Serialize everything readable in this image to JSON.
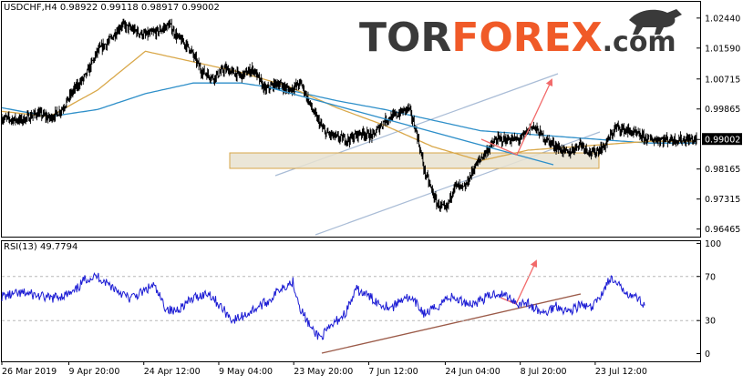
{
  "chart_data": [
    {
      "type": "line",
      "title": "USDCHF,H4  0.98922 0.99118 0.98917 0.99002",
      "symbol": "USDCHF",
      "timeframe": "H4",
      "ohlc": {
        "open": 0.98922,
        "high": 0.99118,
        "low": 0.98917,
        "close": 0.99002
      },
      "watermark": "TORFOREX.com",
      "ylim": [
        0.9625,
        1.029
      ],
      "y_ticks": [
        "1.02440",
        "1.01590",
        "1.00715",
        "0.99865",
        "0.99002",
        "0.98165",
        "0.97315",
        "0.96465"
      ],
      "current_price_label": "0.99002",
      "x_tick_labels": [
        "26 Mar 2019",
        "9 Apr 20:00",
        "24 Apr 12:00",
        "9 May 04:00",
        "23 May 20:00",
        "7 Jun 12:00",
        "24 Jun 04:00",
        "8 Jul 20:00",
        "23 Jul 12:00"
      ],
      "x_tick_index": [
        0,
        84,
        178,
        272,
        366,
        460,
        556,
        650,
        744
      ],
      "n_bars": 872,
      "grid": false,
      "colors": {
        "price": "#000000",
        "ma_fast": "#d9a84a",
        "ma_slow": "#2e8fc9",
        "channel": "#a9bcd6",
        "zone_fill": "#e8e2d0",
        "zone_border": "#d7a64a",
        "arrow": "#f26a6a"
      },
      "series": [
        {
          "anchors": [
            [
              0,
              0.996
            ],
            [
              25,
              0.9955
            ],
            [
              45,
              0.9975
            ],
            [
              60,
              0.996
            ],
            [
              75,
              0.9985
            ],
            [
              90,
              1.004
            ],
            [
              105,
              1.008
            ],
            [
              120,
              1.015
            ],
            [
              135,
              1.018
            ],
            [
              150,
              1.0225
            ],
            [
              165,
              1.021
            ],
            [
              180,
              1.0195
            ],
            [
              195,
              1.0205
            ],
            [
              210,
              1.0225
            ],
            [
              220,
              1.019
            ],
            [
              235,
              1.016
            ],
            [
              250,
              1.0095
            ],
            [
              265,
              1.0075
            ],
            [
              280,
              1.01
            ],
            [
              300,
              1.008
            ],
            [
              315,
              1.01
            ],
            [
              330,
              1.004
            ],
            [
              345,
              1.006
            ],
            [
              360,
              1.004
            ],
            [
              375,
              1.006
            ],
            [
              390,
              0.998
            ],
            [
              405,
              0.992
            ],
            [
              420,
              0.9905
            ],
            [
              435,
              0.99
            ],
            [
              450,
              0.992
            ],
            [
              465,
              0.991
            ],
            [
              480,
              0.9955
            ],
            [
              495,
              0.997
            ],
            [
              510,
              0.999
            ],
            [
              520,
              0.992
            ],
            [
              530,
              0.981
            ],
            [
              545,
              0.972
            ],
            [
              557,
              0.97
            ],
            [
              567,
              0.977
            ],
            [
              580,
              0.976
            ],
            [
              592,
              0.982
            ],
            [
              605,
              0.986
            ],
            [
              620,
              0.99
            ],
            [
              635,
              0.99
            ],
            [
              650,
              0.99
            ],
            [
              665,
              0.994
            ],
            [
              680,
              0.9905
            ],
            [
              695,
              0.988
            ],
            [
              710,
              0.986
            ],
            [
              725,
              0.989
            ],
            [
              740,
              0.986
            ],
            [
              755,
              0.988
            ],
            [
              770,
              0.9935
            ],
            [
              785,
              0.9925
            ],
            [
              800,
              0.991
            ],
            [
              813,
              0.99
            ]
          ],
          "ma_fast": [
            [
              0,
              0.998
            ],
            [
              60,
              0.9965
            ],
            [
              120,
              1.004
            ],
            [
              180,
              1.015
            ],
            [
              240,
              1.012
            ],
            [
              300,
              1.009
            ],
            [
              360,
              1.005
            ],
            [
              420,
              0.999
            ],
            [
              480,
              0.994
            ],
            [
              540,
              0.988
            ],
            [
              600,
              0.984
            ],
            [
              660,
              0.987
            ],
            [
              720,
              0.988
            ],
            [
              780,
              0.989
            ],
            [
              813,
              0.9895
            ]
          ],
          "ma_slow": [
            [
              0,
              0.999
            ],
            [
              60,
              0.9965
            ],
            [
              120,
              0.9985
            ],
            [
              180,
              1.003
            ],
            [
              240,
              1.006
            ],
            [
              300,
              1.006
            ],
            [
              360,
              1.004
            ],
            [
              420,
              1.001
            ],
            [
              480,
              0.9985
            ],
            [
              540,
              0.9955
            ],
            [
              600,
              0.9925
            ],
            [
              660,
              0.9915
            ],
            [
              720,
              0.9905
            ],
            [
              780,
              0.9895
            ],
            [
              813,
              0.989
            ]
          ]
        }
      ]
    },
    {
      "type": "line",
      "title": "RSI(13) 49.7794",
      "indicator": "RSI",
      "period": 13,
      "value": 49.7794,
      "ylim": [
        -7,
        102
      ],
      "y_ticks": [
        "100",
        "70",
        "30",
        "0"
      ],
      "levels": [
        70,
        30
      ],
      "series": [
        {
          "anchors": [
            [
              0,
              52
            ],
            [
              30,
              55
            ],
            [
              60,
              50
            ],
            [
              90,
              55
            ],
            [
              105,
              68
            ],
            [
              120,
              70
            ],
            [
              140,
              60
            ],
            [
              160,
              50
            ],
            [
              175,
              55
            ],
            [
              190,
              62
            ],
            [
              205,
              42
            ],
            [
              215,
              38
            ],
            [
              230,
              45
            ],
            [
              245,
              52
            ],
            [
              260,
              55
            ],
            [
              275,
              42
            ],
            [
              290,
              30
            ],
            [
              305,
              35
            ],
            [
              320,
              42
            ],
            [
              335,
              48
            ],
            [
              350,
              60
            ],
            [
              365,
              65
            ],
            [
              375,
              40
            ],
            [
              390,
              20
            ],
            [
              400,
              15
            ],
            [
              410,
              22
            ],
            [
              420,
              30
            ],
            [
              430,
              36
            ],
            [
              445,
              58
            ],
            [
              460,
              52
            ],
            [
              475,
              45
            ],
            [
              490,
              42
            ],
            [
              505,
              52
            ],
            [
              520,
              45
            ],
            [
              530,
              36
            ],
            [
              545,
              42
            ],
            [
              560,
              52
            ],
            [
              575,
              48
            ],
            [
              590,
              45
            ],
            [
              605,
              50
            ],
            [
              620,
              55
            ],
            [
              635,
              52
            ],
            [
              648,
              45
            ],
            [
              657,
              47
            ],
            [
              665,
              42
            ],
            [
              680,
              36
            ],
            [
              695,
              44
            ],
            [
              710,
              38
            ],
            [
              725,
              44
            ],
            [
              740,
              41
            ],
            [
              755,
              58
            ],
            [
              762,
              68
            ],
            [
              772,
              62
            ],
            [
              786,
              55
            ],
            [
              797,
              50
            ],
            [
              806,
              45
            ]
          ]
        }
      ]
    }
  ]
}
